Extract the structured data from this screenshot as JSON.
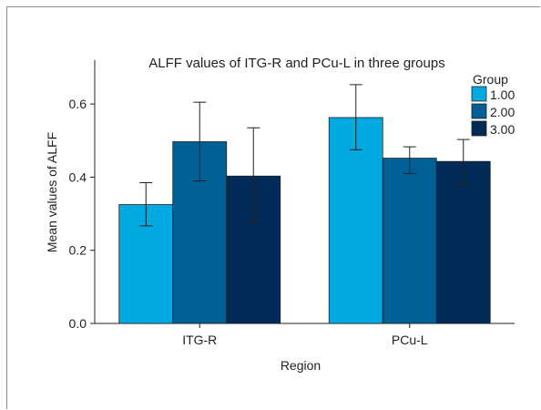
{
  "chart_data": {
    "type": "bar",
    "title": "ALFF values of ITG-R and PCu-L in three groups",
    "xlabel": "Region",
    "ylabel": "Mean values of ALFF",
    "categories": [
      "ITG-R",
      "PCu-L"
    ],
    "ylim": [
      0,
      0.72
    ],
    "yticks": [
      "0.0",
      "0.2",
      "0.4",
      "0.6"
    ],
    "legend": {
      "title": "Group",
      "position": "top-right"
    },
    "series": [
      {
        "name": "1.00",
        "color": "#00a9e0",
        "values": [
          0.325,
          0.563
        ],
        "err_low": [
          0.267,
          0.475
        ],
        "err_high": [
          0.385,
          0.653
        ]
      },
      {
        "name": "2.00",
        "color": "#006096",
        "values": [
          0.497,
          0.452
        ],
        "err_low": [
          0.39,
          0.41
        ],
        "err_high": [
          0.605,
          0.483
        ]
      },
      {
        "name": "3.00",
        "color": "#002b58",
        "values": [
          0.403,
          0.443
        ],
        "err_low": [
          0.273,
          0.378
        ],
        "err_high": [
          0.535,
          0.503
        ]
      }
    ]
  }
}
